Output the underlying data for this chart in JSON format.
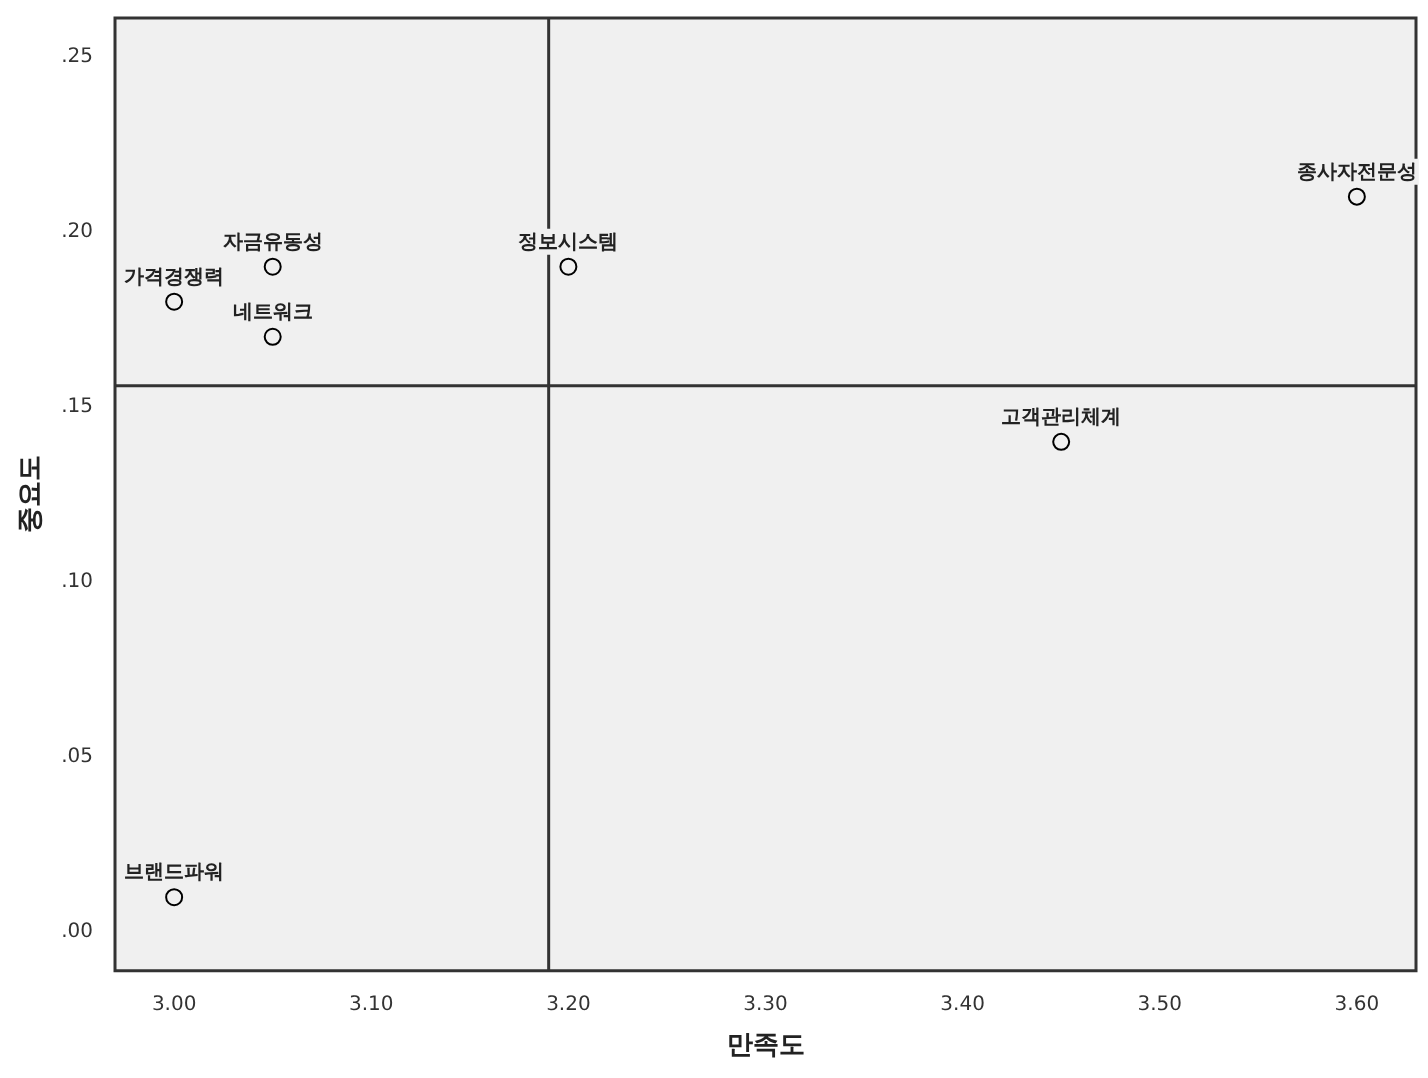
{
  "chart_data": {
    "type": "scatter",
    "xlabel": "만족도",
    "ylabel": "중요도",
    "x": [
      3.0,
      3.05,
      3.05,
      3.2,
      3.6,
      3.45,
      3.0
    ],
    "values": [
      0.18,
      0.19,
      0.17,
      0.19,
      0.21,
      0.14,
      0.01
    ],
    "color": "#000000",
    "marker": "circle",
    "grid": false,
    "legend": false,
    "xlim": [
      2.97,
      3.63
    ],
    "xticks": [
      {
        "value": 3.0,
        "label": "3.00"
      },
      {
        "value": 3.1,
        "label": "3.10"
      },
      {
        "value": 3.2,
        "label": "3.20"
      },
      {
        "value": 3.3,
        "label": "3.30"
      },
      {
        "value": 3.4,
        "label": "3.40"
      },
      {
        "value": 3.5,
        "label": "3.50"
      },
      {
        "value": 3.6,
        "label": "3.60"
      }
    ],
    "ylim": [
      -0.011,
      0.261
    ],
    "yticks": [
      {
        "value": 0,
        "label": ".00"
      },
      {
        "value": 0.05,
        "label": ".05"
      },
      {
        "value": 0.1,
        "label": ".10"
      },
      {
        "value": 0.15,
        "label": ".15"
      },
      {
        "value": 0.2,
        "label": ".20"
      },
      {
        "value": 0.25,
        "label": ".25"
      }
    ],
    "ref_lines": [
      {
        "axis": "x",
        "value": 3.19
      },
      {
        "axis": "y",
        "value": 0.156
      }
    ],
    "annotations": [
      {
        "text": "가격경쟁력",
        "x": 3.0,
        "y": 0.18
      },
      {
        "text": "자금유동성",
        "x": 3.05,
        "y": 0.19
      },
      {
        "text": "네트워크",
        "x": 3.05,
        "y": 0.17
      },
      {
        "text": "정보시스템",
        "x": 3.2,
        "y": 0.19
      },
      {
        "text": "종사자전문성",
        "x": 3.6,
        "y": 0.21
      },
      {
        "text": "고객관리체계",
        "x": 3.45,
        "y": 0.14
      },
      {
        "text": "브랜드파워",
        "x": 3.0,
        "y": 0.01
      }
    ]
  }
}
